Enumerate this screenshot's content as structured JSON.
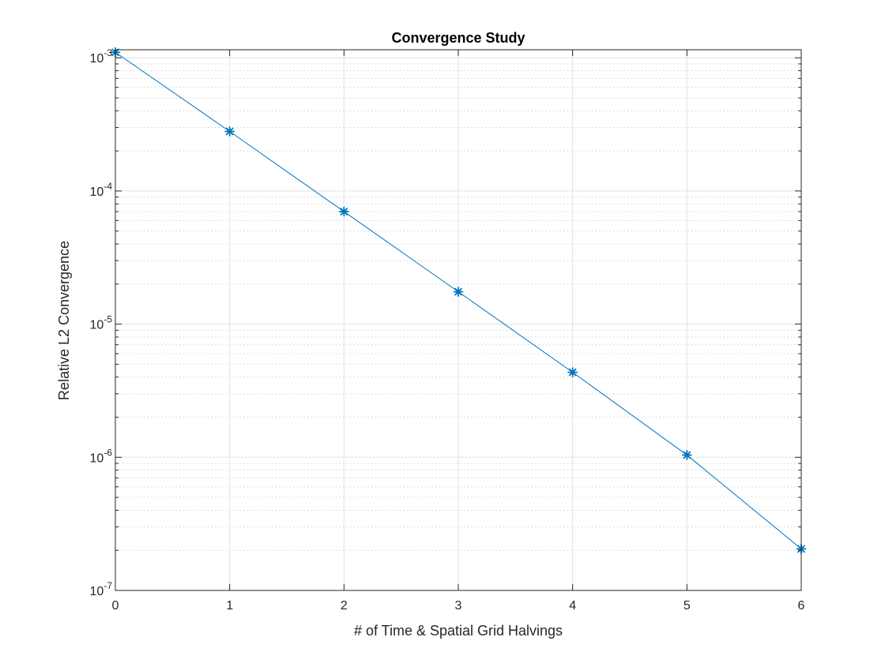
{
  "chart_data": {
    "type": "line",
    "title": "Convergence Study",
    "xlabel": "# of Time & Spatial Grid Halvings",
    "ylabel": "Relative L2 Convergence",
    "xlim": [
      0,
      6
    ],
    "ylim": [
      1e-07,
      0.00115
    ],
    "yscale": "log",
    "grid": true,
    "minor_grid": true,
    "x_ticks": [
      "0",
      "1",
      "2",
      "3",
      "4",
      "5",
      "6"
    ],
    "y_ticks": [
      {
        "base": "10",
        "exp": "-7"
      },
      {
        "base": "10",
        "exp": "-6"
      },
      {
        "base": "10",
        "exp": "-5"
      },
      {
        "base": "10",
        "exp": "-4"
      },
      {
        "base": "10",
        "exp": "-3"
      }
    ],
    "series": [
      {
        "color": "#0072BD",
        "marker": "asterisk",
        "x": [
          0,
          1,
          2,
          3,
          4,
          5,
          6
        ],
        "y": [
          0.0011,
          0.00028,
          7e-05,
          1.75e-05,
          4.35e-06,
          1.04e-06,
          2.05e-07
        ]
      }
    ]
  }
}
